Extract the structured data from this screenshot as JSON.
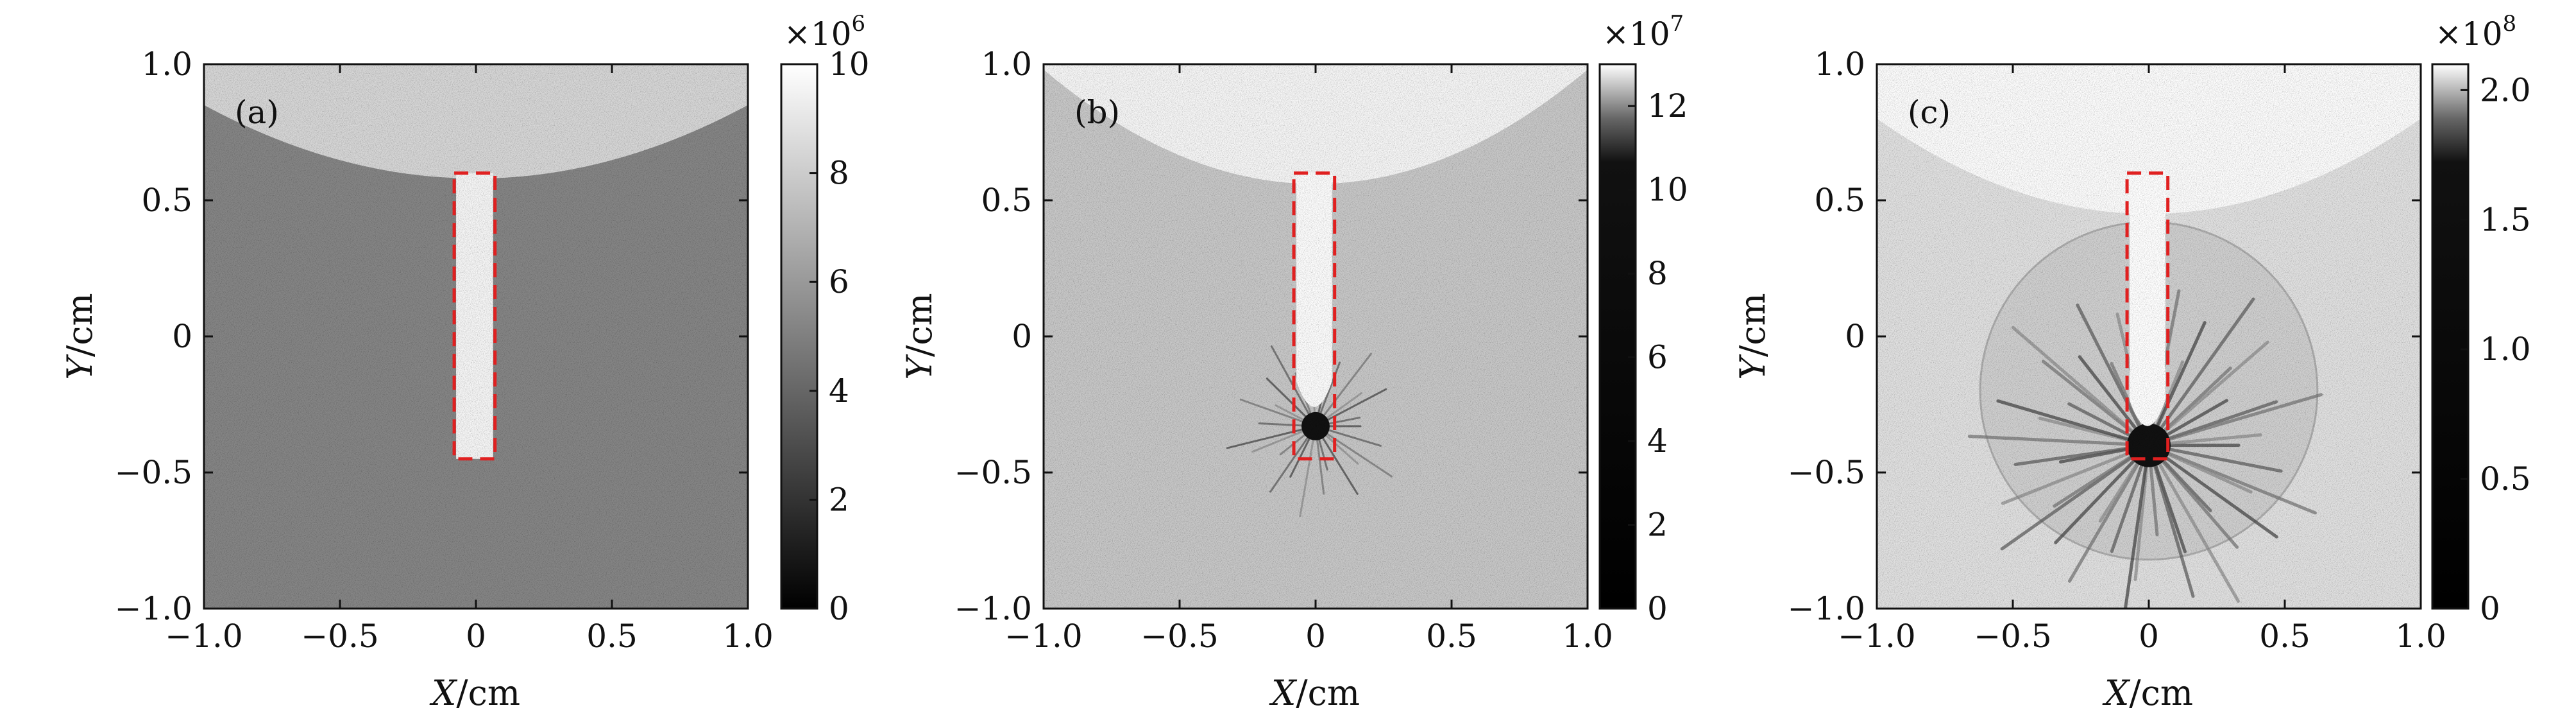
{
  "chart_data": [
    {
      "type": "heatmap",
      "panel_label": "(a)",
      "xlabel": "X/cm",
      "ylabel": "Y/cm",
      "xlim": [
        -1.0,
        1.0
      ],
      "ylim": [
        -1.0,
        1.0
      ],
      "x_ticks": [
        "−1.0",
        "−0.5",
        "0",
        "0.5",
        "1.0"
      ],
      "y_ticks": [
        "−1.0",
        "−0.5",
        "0",
        "0.5",
        "1.0"
      ],
      "colorbar": {
        "multiplier": "×10",
        "exponent": "6",
        "ticks": [
          "0",
          "2",
          "4",
          "6",
          "8",
          "10"
        ],
        "tick_values": [
          0,
          2,
          4,
          6,
          8,
          10
        ],
        "range": [
          0,
          10.0
        ],
        "colormap": "gray"
      },
      "arc": {
        "vertex_y": 0.58,
        "y_at_edges": 0.85
      },
      "rect": {
        "x": [
          -0.08,
          0.07
        ],
        "y": [
          -0.45,
          0.6
        ]
      },
      "rect_color": "#e02020",
      "background_level": 0.52,
      "top_region_level": 0.84,
      "rect_fill_level": 0.96,
      "focus": null,
      "shock_front": null
    },
    {
      "type": "heatmap",
      "panel_label": "(b)",
      "xlabel": "X/cm",
      "ylabel": "Y/cm",
      "xlim": [
        -1.0,
        1.0
      ],
      "ylim": [
        -1.0,
        1.0
      ],
      "x_ticks": [
        "−1.0",
        "−0.5",
        "0",
        "0.5",
        "1.0"
      ],
      "y_ticks": [
        "−1.0",
        "−0.5",
        "0",
        "0.5",
        "1.0"
      ],
      "colorbar": {
        "multiplier": "×10",
        "exponent": "7",
        "ticks": [
          "0",
          "2",
          "4",
          "6",
          "8",
          "10",
          "12"
        ],
        "tick_values": [
          0,
          2,
          4,
          6,
          8,
          10,
          12
        ],
        "range": [
          0,
          13.0
        ],
        "colormap": "gray-compressed"
      },
      "arc": {
        "vertex_y": 0.56,
        "y_at_edges": 0.98
      },
      "rect": {
        "x": [
          -0.08,
          0.07
        ],
        "y": [
          -0.45,
          0.6
        ]
      },
      "rect_color": "#e02020",
      "background_level": 0.78,
      "top_region_level": 0.96,
      "rect_fill_level": 0.99,
      "focus": {
        "x": 0.0,
        "y": -0.33
      },
      "shock_front": null
    },
    {
      "type": "heatmap",
      "panel_label": "(c)",
      "xlabel": "X/cm",
      "ylabel": "Y/cm",
      "xlim": [
        -1.0,
        1.0
      ],
      "ylim": [
        -1.0,
        1.0
      ],
      "x_ticks": [
        "−1.0",
        "−0.5",
        "0",
        "0.5",
        "1.0"
      ],
      "y_ticks": [
        "−1.0",
        "−0.5",
        "0",
        "0.5",
        "1.0"
      ],
      "colorbar": {
        "multiplier": "×10",
        "exponent": "8",
        "ticks": [
          "0",
          "0.5",
          "1.0",
          "1.5",
          "2.0"
        ],
        "tick_values": [
          0,
          0.5,
          1.0,
          1.5,
          2.0
        ],
        "range": [
          0,
          2.1
        ],
        "colormap": "gray-compressed"
      },
      "arc": {
        "vertex_y": 0.45,
        "y_at_edges": 0.8
      },
      "rect": {
        "x": [
          -0.08,
          0.07
        ],
        "y": [
          -0.45,
          0.6
        ]
      },
      "rect_color": "#e02020",
      "background_level": 0.88,
      "top_region_level": 0.99,
      "rect_fill_level": 1.0,
      "focus": {
        "x": 0.0,
        "y": -0.4
      },
      "shock_front": {
        "center_x": 0.0,
        "center_y": -0.2,
        "radius": 0.62
      }
    }
  ]
}
